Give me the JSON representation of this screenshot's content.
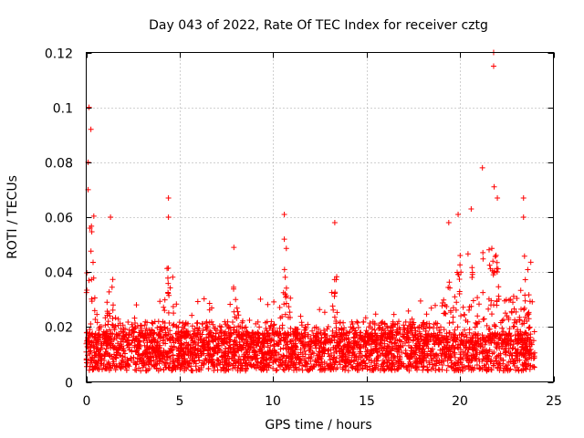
{
  "chart_data": {
    "type": "scatter",
    "title": "Day 043 of 2022, Rate Of TEC Index for receiver cztg",
    "xlabel": "GPS time / hours",
    "ylabel": "ROTI / TECUs",
    "xlim": [
      0,
      25
    ],
    "ylim": [
      0,
      0.12
    ],
    "xticks": [
      0,
      5,
      10,
      15,
      20,
      25
    ],
    "yticks": [
      0,
      0.02,
      0.04,
      0.06,
      0.08,
      0.1,
      0.12
    ],
    "xtick_labels": [
      "0",
      "5",
      "10",
      "15",
      "20",
      "25"
    ],
    "ytick_labels": [
      "0",
      "0.02",
      "0.04",
      "0.06",
      "0.08",
      "0.1",
      "0.12"
    ],
    "grid": true,
    "marker": "+",
    "series": [
      {
        "name": "ROTI",
        "color": "#ff0000",
        "x_range": [
          0,
          24
        ],
        "baseline_typical": 0.012,
        "notable_points": [
          {
            "x": 0.15,
            "y": 0.1
          },
          {
            "x": 0.1,
            "y": 0.08
          },
          {
            "x": 0.1,
            "y": 0.07
          },
          {
            "x": 0.2,
            "y": 0.056
          },
          {
            "x": 0.25,
            "y": 0.092
          },
          {
            "x": 1.3,
            "y": 0.06
          },
          {
            "x": 4.4,
            "y": 0.067
          },
          {
            "x": 4.4,
            "y": 0.06
          },
          {
            "x": 7.9,
            "y": 0.049
          },
          {
            "x": 10.6,
            "y": 0.061
          },
          {
            "x": 10.6,
            "y": 0.052
          },
          {
            "x": 13.3,
            "y": 0.058
          },
          {
            "x": 19.4,
            "y": 0.058
          },
          {
            "x": 19.9,
            "y": 0.061
          },
          {
            "x": 20.6,
            "y": 0.063
          },
          {
            "x": 21.2,
            "y": 0.078
          },
          {
            "x": 21.8,
            "y": 0.12
          },
          {
            "x": 21.8,
            "y": 0.115
          },
          {
            "x": 22.0,
            "y": 0.067
          },
          {
            "x": 23.4,
            "y": 0.067
          },
          {
            "x": 23.4,
            "y": 0.06
          }
        ]
      }
    ]
  }
}
